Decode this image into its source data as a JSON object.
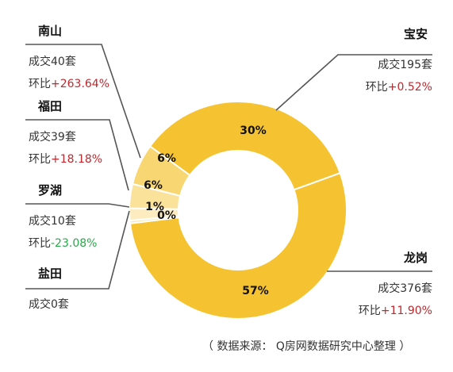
{
  "chart_data": {
    "type": "donut",
    "slices": [
      {
        "name": "宝安",
        "percent": 30,
        "label": "30%",
        "deals": "成交195套",
        "change_prefix": "环比",
        "change": "+0.52%",
        "direction": "up",
        "color": "#f5c331"
      },
      {
        "name": "龙岗",
        "percent": 57,
        "label": "57%",
        "deals": "成交376套",
        "change_prefix": "环比",
        "change": "+11.90%",
        "direction": "up",
        "color": "#f5c331"
      },
      {
        "name": "盐田",
        "percent": 0,
        "label": "0%",
        "deals": "成交0套",
        "change_prefix": "",
        "change": "",
        "direction": "none",
        "color": "#fbe8b2"
      },
      {
        "name": "罗湖",
        "percent": 1,
        "label": "1%",
        "deals": "成交10套",
        "change_prefix": "环比",
        "change": "-23.08%",
        "direction": "down",
        "color": "#fcecc0"
      },
      {
        "name": "福田",
        "percent": 6,
        "label": "6%",
        "deals": "成交39套",
        "change_prefix": "环比",
        "change": "+18.18%",
        "direction": "up",
        "color": "#fbe29a"
      },
      {
        "name": "南山",
        "percent": 6,
        "label": "6%",
        "deals": "成交40套",
        "change_prefix": "环比",
        "change": "+263.64%",
        "direction": "up",
        "color": "#f8d772"
      }
    ]
  },
  "source_note": "（ 数据来源：  Q房网数据研究中心整理 ）"
}
